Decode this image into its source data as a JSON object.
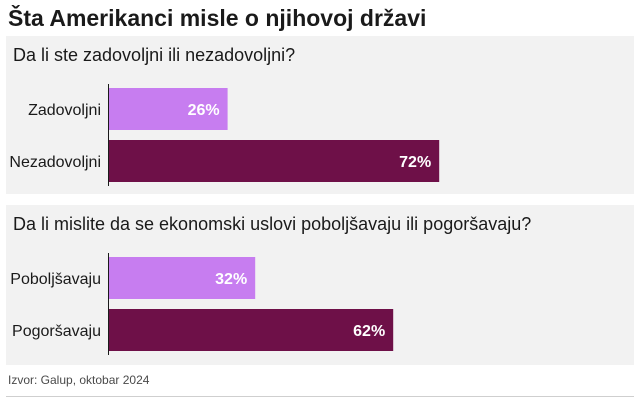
{
  "title": "Šta Amerikanci misle o njihovoj državi",
  "source": "Izvor: Galup, oktobar 2024",
  "colors": {
    "light": "#c77df0",
    "dark": "#6e1048",
    "axis": "#1a1a1a",
    "panel": "#f2f2f2"
  },
  "chart_data": [
    {
      "type": "bar",
      "orientation": "horizontal",
      "title": "Da li ste zadovoljni ili nezadovoljni?",
      "categories": [
        "Zadovoljni",
        "Nezadovoljni"
      ],
      "values": [
        26,
        72
      ],
      "labels": [
        "26%",
        "72%"
      ],
      "colors": [
        "#c77df0",
        "#6e1048"
      ],
      "unit": "%",
      "xlim": [
        0,
        100
      ],
      "grid": false
    },
    {
      "type": "bar",
      "orientation": "horizontal",
      "title": "Da li mislite da se ekonomski uslovi poboljšavaju ili pogoršavaju?",
      "categories": [
        "Poboljšavaju",
        "Pogoršavaju"
      ],
      "values": [
        32,
        62
      ],
      "labels": [
        "32%",
        "62%"
      ],
      "colors": [
        "#c77df0",
        "#6e1048"
      ],
      "unit": "%",
      "xlim": [
        0,
        100
      ],
      "grid": false
    }
  ]
}
